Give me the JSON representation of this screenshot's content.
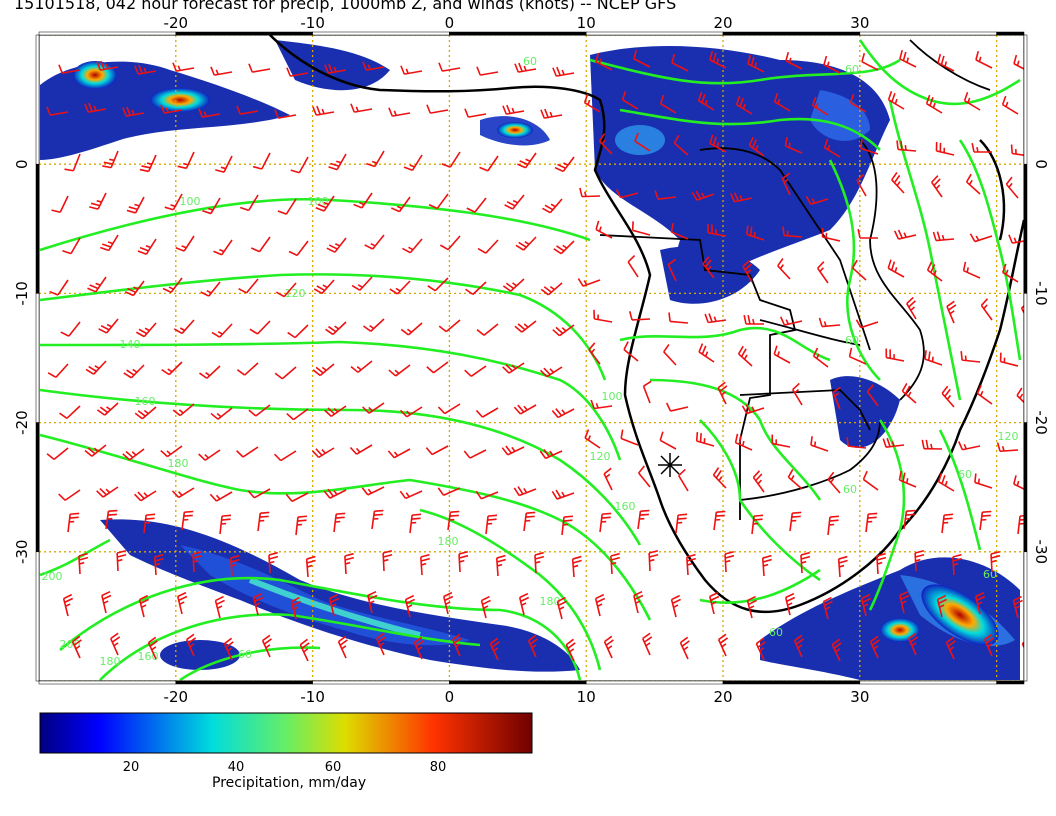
{
  "title": "15101518, 042 hour forecast for precip, 1000mb Z, and winds (knots) -- NCEP GFS",
  "map": {
    "lon_range": [
      -30,
      42
    ],
    "lat_range": [
      -40,
      10
    ],
    "lon_ticks": [
      "-20",
      "-10",
      "0",
      "10",
      "20",
      "30"
    ],
    "lat_ticks": [
      "0",
      "-10",
      "-20",
      "-30"
    ],
    "layers": [
      "precipitation shading",
      "1000mb geopotential height contours",
      "wind barbs",
      "coastlines and country borders",
      "lat/lon grid"
    ],
    "colors": {
      "contours": "#22ee22",
      "barbs": "#ee1111",
      "grid": "#d8a800",
      "coast": "#000000"
    },
    "contour_labels": [
      "60",
      "90",
      "100",
      "120",
      "140",
      "150",
      "160",
      "180",
      "200"
    ]
  },
  "colorbar": {
    "label": "Precipitation, mm/day",
    "ticks": [
      "20",
      "40",
      "60",
      "80"
    ],
    "range": [
      0,
      100
    ],
    "colormap": "jet"
  }
}
